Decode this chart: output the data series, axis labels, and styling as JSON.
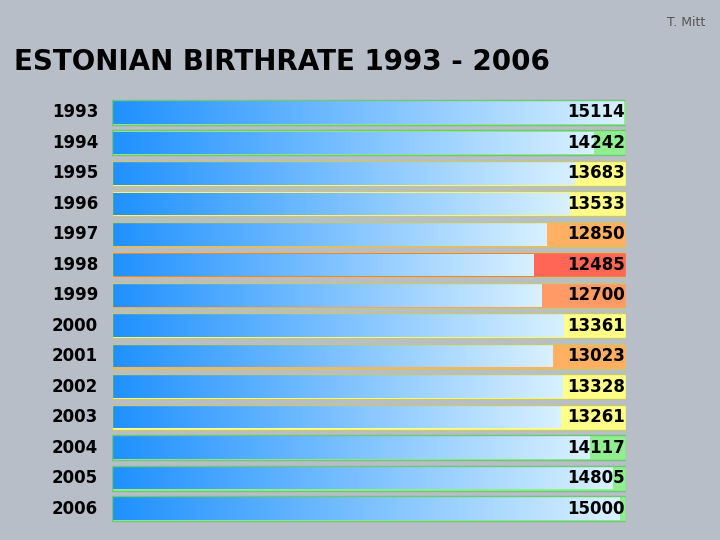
{
  "title": "ESTONIAN BIRTHRATE 1993 - 2006",
  "author": "T. Mitt",
  "years": [
    1993,
    1994,
    1995,
    1996,
    1997,
    1998,
    1999,
    2000,
    2001,
    2002,
    2003,
    2004,
    2005,
    2006
  ],
  "values": [
    15114,
    14242,
    13683,
    13533,
    12850,
    12485,
    12700,
    13361,
    13023,
    13328,
    13261,
    14117,
    14805,
    15000
  ],
  "bar_max": 15200,
  "bg_color": "#b8bec8",
  "label_panel_color": "#dde4ec",
  "title_fontsize": 20,
  "year_fontsize": 12,
  "value_fontsize": 12,
  "row_bg_colors": [
    "#90EE90",
    "#90EE90",
    "#FFFF88",
    "#FFFF88",
    "#FFB060",
    "#FF6655",
    "#FF9966",
    "#FFFF88",
    "#FFB060",
    "#FFFF88",
    "#FFFF88",
    "#90EE90",
    "#90EE90",
    "#90EE90"
  ],
  "green_border_color": "#70C870",
  "yellow_border_color": "#c8c870",
  "separator_color": "#a8b8a8"
}
